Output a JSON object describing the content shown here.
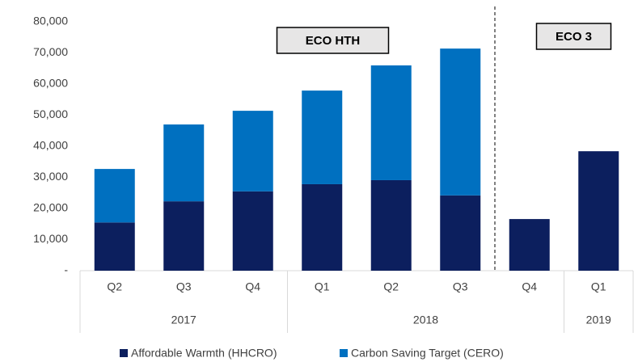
{
  "chart_data": {
    "type": "stacked_bar",
    "categories": [
      "Q2",
      "Q3",
      "Q4",
      "Q1",
      "Q2",
      "Q3",
      "Q4",
      "Q1"
    ],
    "groups": [
      {
        "label": "2017",
        "count": 3
      },
      {
        "label": "2018",
        "count": 4
      },
      {
        "label": "2019",
        "count": 1
      }
    ],
    "series": [
      {
        "name": "Affordable Warmth (HHCRO)",
        "color": "#0c1f5e",
        "values": [
          15500,
          22300,
          25500,
          27800,
          29100,
          24200,
          16600,
          38400
        ]
      },
      {
        "name": "Carbon Saving Target (CERO)",
        "color": "#0070c0",
        "values": [
          17200,
          24700,
          25900,
          30100,
          36900,
          47200,
          null,
          null
        ]
      }
    ],
    "ylim": [
      0,
      80000
    ],
    "yticks": [
      {
        "value": 0,
        "label": "-"
      },
      {
        "value": 10000,
        "label": "10,000"
      },
      {
        "value": 20000,
        "label": "20,000"
      },
      {
        "value": 30000,
        "label": "30,000"
      },
      {
        "value": 40000,
        "label": "40,000"
      },
      {
        "value": 50000,
        "label": "50,000"
      },
      {
        "value": 60000,
        "label": "60,000"
      },
      {
        "value": 70000,
        "label": "70,000"
      },
      {
        "value": 80000,
        "label": "80,000"
      }
    ],
    "annotations": [
      {
        "text": "ECO HTH"
      },
      {
        "text": "ECO 3"
      }
    ],
    "legend": "bottom"
  }
}
